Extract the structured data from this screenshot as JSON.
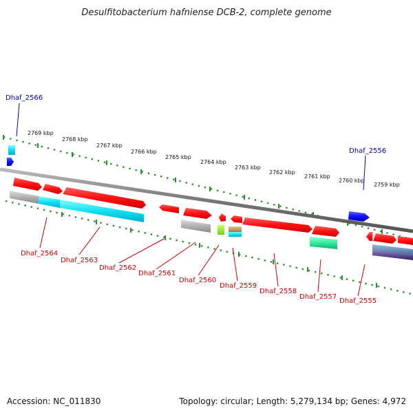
{
  "title": "Desulfitobacterium hafniense DCB-2, complete genome",
  "footer": {
    "accession": "Accession: NC_011830",
    "topology": "Topology: circular; Length: 5,279,134 bp; Genes: 4,972"
  },
  "ticks": [
    "2769 kbp",
    "2768 kbp",
    "2767 kbp",
    "2766 kbp",
    "2765 kbp",
    "2764 kbp",
    "2763 kbp",
    "2762 kbp",
    "2761 kbp",
    "2760 kbp",
    "2759 kbp"
  ],
  "gene_labels": {
    "top": [
      "Dhaf_2566",
      "Dhaf_2556"
    ],
    "bottom": [
      "Dhaf_2564",
      "Dhaf_2563",
      "Dhaf_2562",
      "Dhaf_2561",
      "Dhaf_2560",
      "Dhaf_2559",
      "Dhaf_2558",
      "Dhaf_2557",
      "Dhaf_2555"
    ]
  },
  "colors": {
    "gene_red": "#ff1a1a",
    "cyan": "#19e6f0",
    "gray": "#b8b8b8",
    "blue": "#1f1fff",
    "green": "#33ee99",
    "lime": "#99ee33",
    "tan": "#c8a060",
    "steel": "#5577aa",
    "purple": "#554488",
    "tick_green": "#2e8b2e",
    "label_red": "#cc0000",
    "label_blue": "#0000aa"
  }
}
